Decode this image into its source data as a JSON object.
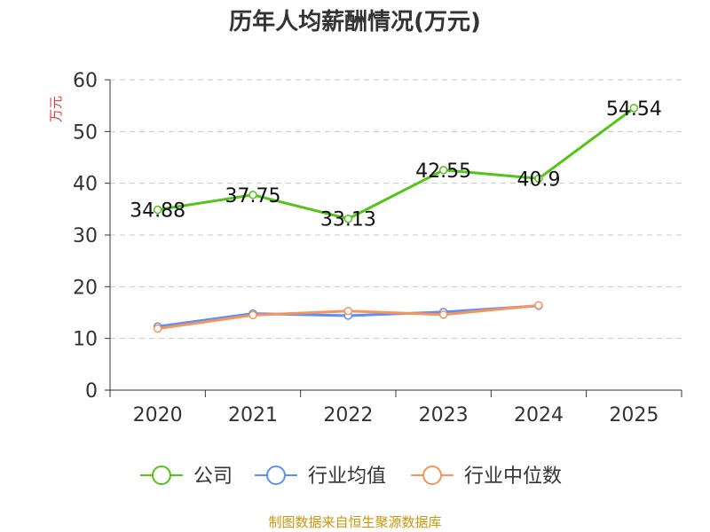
{
  "chart_data": {
    "type": "line",
    "title": "历年人均薪酬情况(万元)",
    "ylabel": "万元",
    "xlabel": "",
    "categories": [
      "2020",
      "2021",
      "2022",
      "2023",
      "2024",
      "2025"
    ],
    "ylim": [
      0,
      60
    ],
    "yticks": [
      0,
      10,
      20,
      30,
      40,
      50,
      60
    ],
    "grid": true,
    "legend_position": "bottom",
    "series": [
      {
        "name": "公司",
        "color": "#52c41a",
        "values": [
          34.88,
          37.75,
          33.13,
          42.55,
          40.9,
          54.54
        ],
        "labels": [
          "34.88",
          "37.75",
          "33.13",
          "42.55",
          "40.9",
          "54.54"
        ]
      },
      {
        "name": "行业均值",
        "color": "#5b8ff9",
        "values": [
          12.3,
          14.8,
          14.4,
          15.1,
          16.3,
          null
        ]
      },
      {
        "name": "行业中位数",
        "color": "#f6945a",
        "values": [
          11.9,
          14.5,
          15.3,
          14.6,
          16.4,
          null
        ]
      }
    ]
  },
  "source_text": "制图数据来自恒生聚源数据库"
}
